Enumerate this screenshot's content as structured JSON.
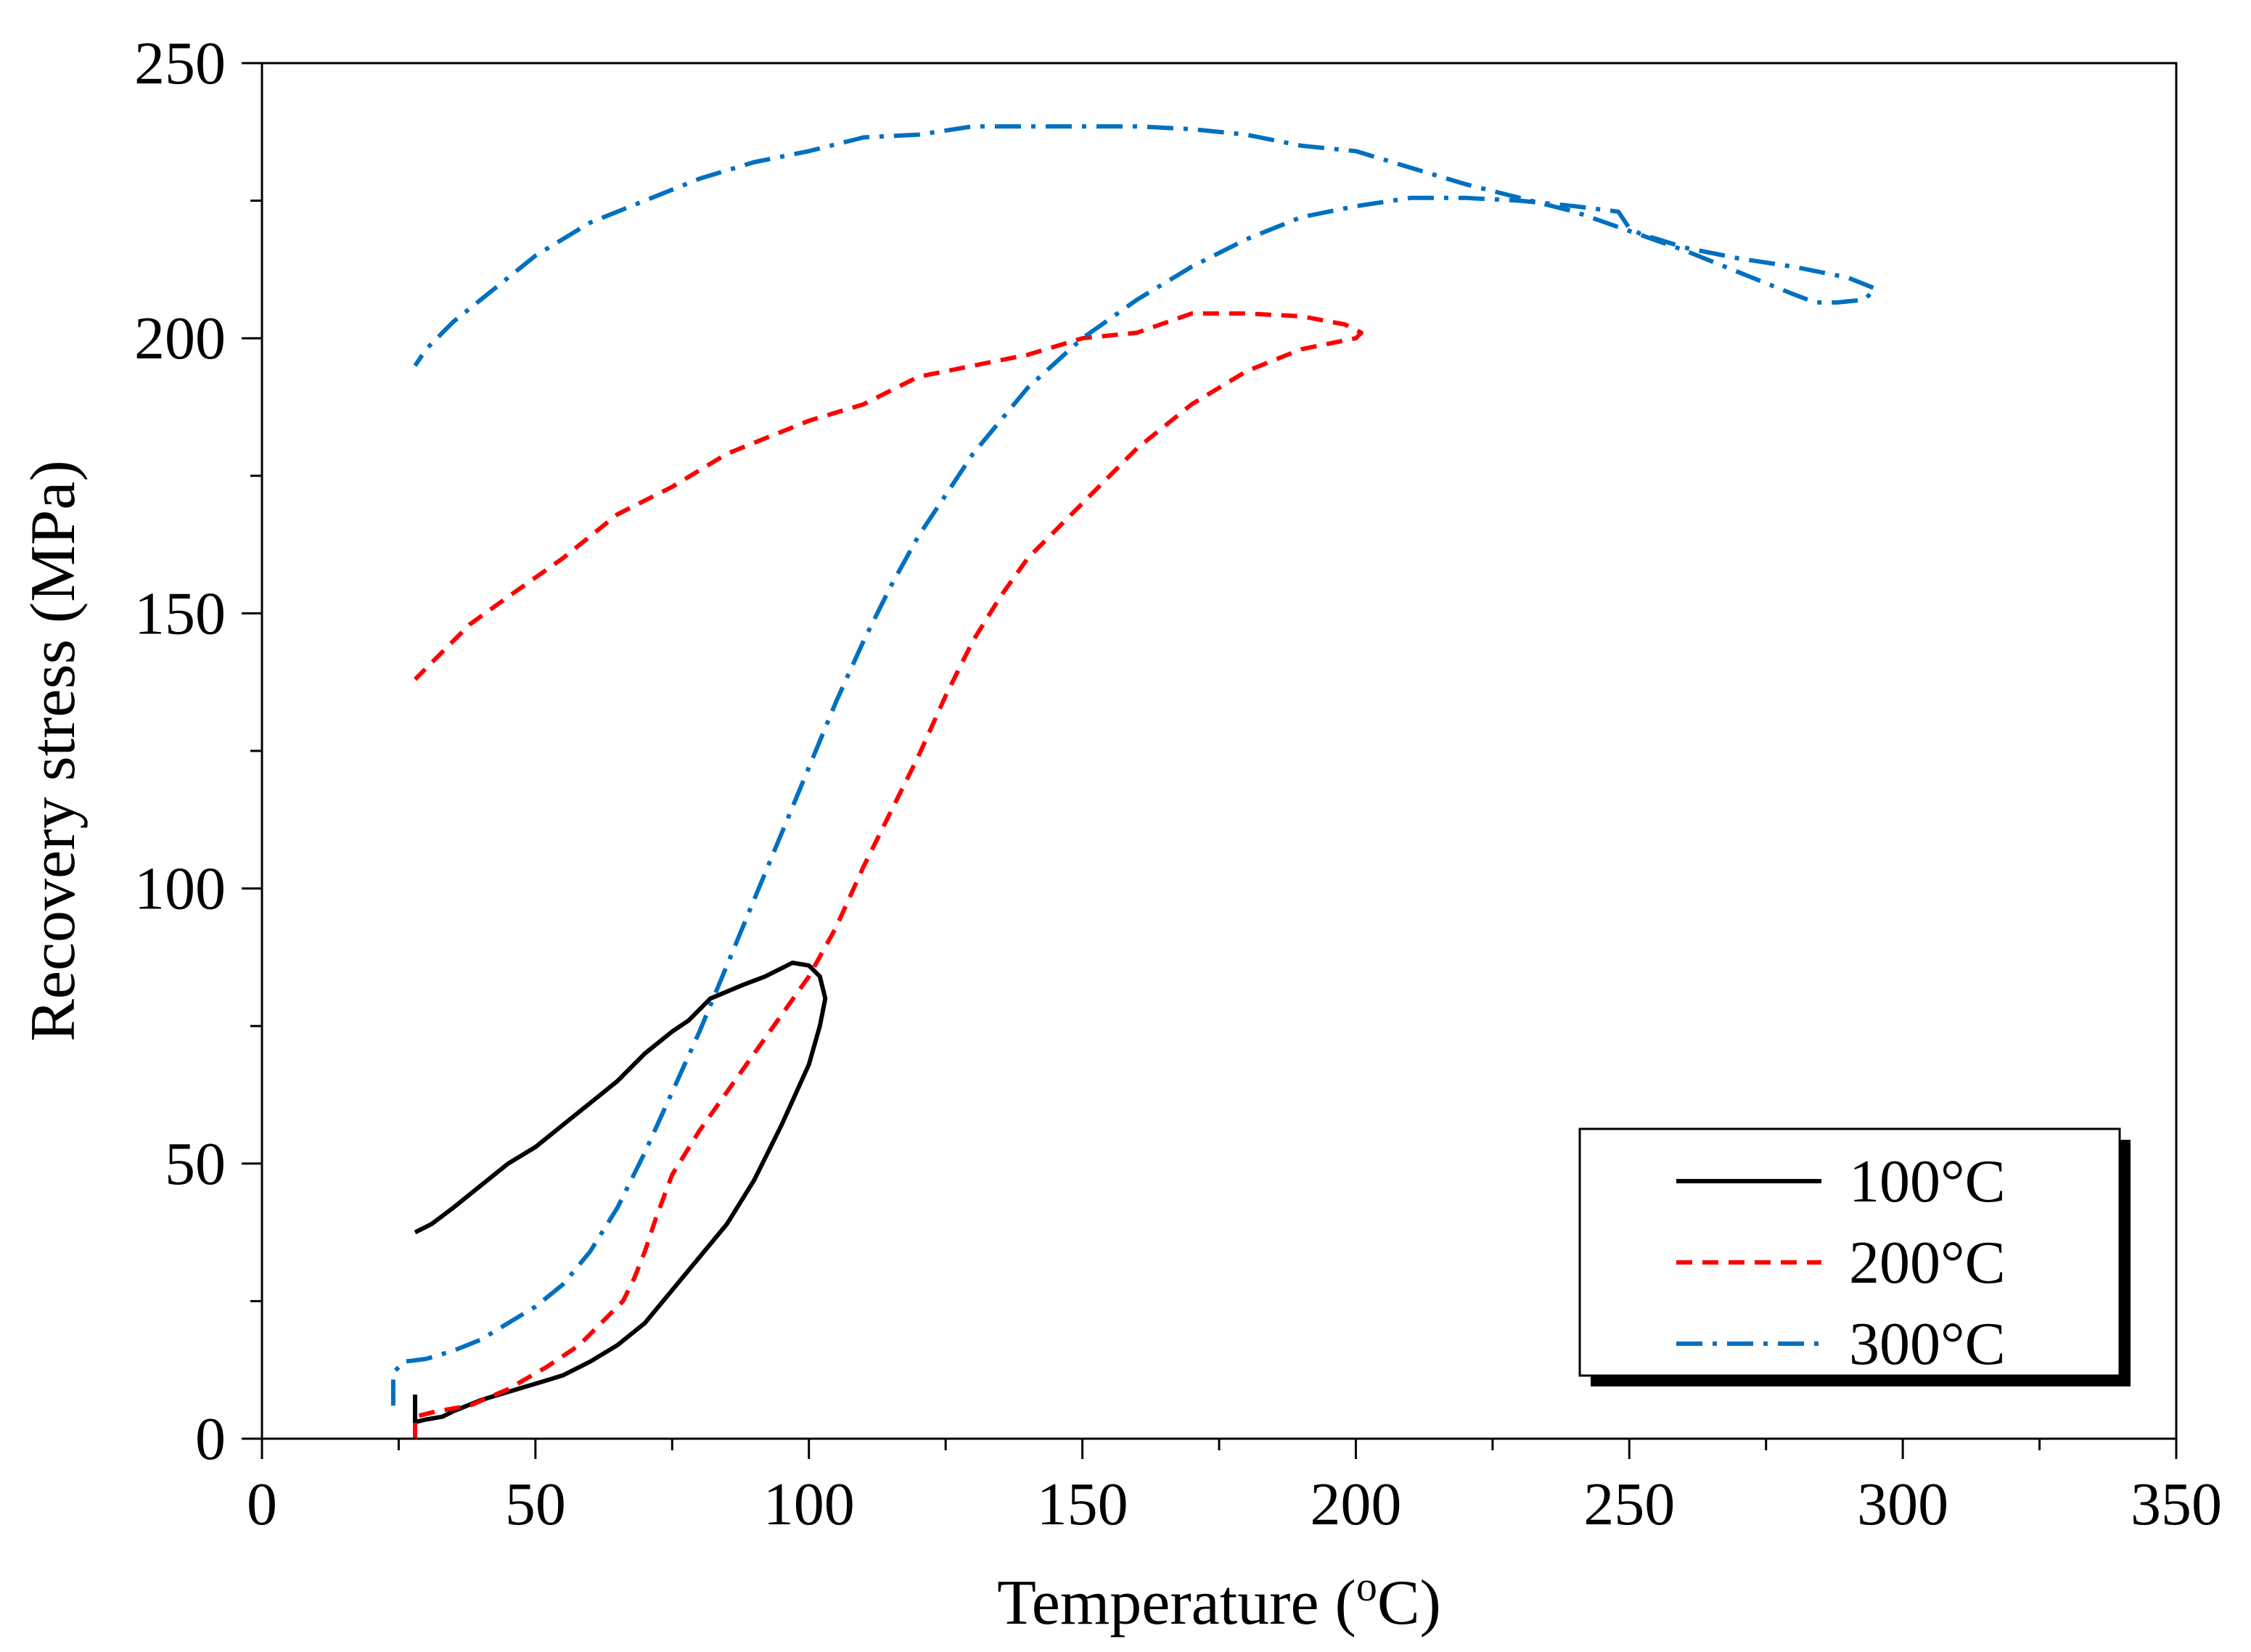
{
  "chart_data": {
    "type": "line",
    "title": "",
    "xlabel": "Temperature (oC)",
    "xlabel_parts": {
      "prefix": "Temperature (",
      "superscript": "o",
      "suffix": "C)"
    },
    "ylabel": "Recovery stress (MPa)",
    "xlim": [
      0,
      350
    ],
    "ylim": [
      0,
      250
    ],
    "x_ticks": [
      0,
      50,
      100,
      150,
      200,
      250,
      300,
      350
    ],
    "y_ticks": [
      0,
      50,
      100,
      150,
      200,
      250
    ],
    "x_tick_labels": [
      "0",
      "50",
      "100",
      "150",
      "200",
      "250",
      "300",
      "350"
    ],
    "y_tick_labels": [
      "0",
      "50",
      "100",
      "150",
      "200",
      "250"
    ],
    "grid": false,
    "legend_position": "bottom-right",
    "series": [
      {
        "name": "100°C",
        "color": "#000000",
        "dash": "solid",
        "points": [
          [
            28,
            8
          ],
          [
            28,
            3
          ],
          [
            30,
            3.5
          ],
          [
            33,
            4
          ],
          [
            35,
            5
          ],
          [
            40,
            7
          ],
          [
            45,
            8.5
          ],
          [
            50,
            10
          ],
          [
            55,
            11.5
          ],
          [
            60,
            14
          ],
          [
            65,
            17
          ],
          [
            70,
            21
          ],
          [
            75,
            27
          ],
          [
            80,
            33
          ],
          [
            85,
            39
          ],
          [
            90,
            47
          ],
          [
            95,
            57
          ],
          [
            100,
            68
          ],
          [
            102,
            75
          ],
          [
            103,
            80
          ],
          [
            102,
            84
          ],
          [
            100,
            86
          ],
          [
            97,
            86.5
          ],
          [
            92,
            84
          ],
          [
            88,
            82.5
          ],
          [
            82,
            80
          ],
          [
            78,
            76
          ],
          [
            75,
            74
          ],
          [
            70,
            70
          ],
          [
            65,
            65
          ],
          [
            60,
            61
          ],
          [
            55,
            57
          ],
          [
            50,
            53
          ],
          [
            45,
            50
          ],
          [
            40,
            46
          ],
          [
            35,
            42
          ],
          [
            31,
            39
          ],
          [
            28,
            37.5
          ]
        ]
      },
      {
        "name": "200°C",
        "color": "#ff0000",
        "dash": "dashed",
        "points": [
          [
            28,
            0
          ],
          [
            28,
            4
          ],
          [
            32,
            5
          ],
          [
            38,
            6
          ],
          [
            45,
            9
          ],
          [
            52,
            13
          ],
          [
            58,
            17
          ],
          [
            62,
            21
          ],
          [
            66,
            25
          ],
          [
            68,
            29
          ],
          [
            70,
            34
          ],
          [
            72,
            40
          ],
          [
            75,
            48
          ],
          [
            80,
            56
          ],
          [
            85,
            63
          ],
          [
            90,
            70
          ],
          [
            95,
            77
          ],
          [
            100,
            84
          ],
          [
            105,
            93
          ],
          [
            110,
            104
          ],
          [
            115,
            114
          ],
          [
            120,
            124
          ],
          [
            125,
            135
          ],
          [
            130,
            145
          ],
          [
            135,
            153
          ],
          [
            140,
            160
          ],
          [
            150,
            170
          ],
          [
            160,
            180
          ],
          [
            170,
            188
          ],
          [
            180,
            194
          ],
          [
            190,
            198
          ],
          [
            200,
            200
          ],
          [
            201,
            201
          ],
          [
            198,
            202.5
          ],
          [
            190,
            204
          ],
          [
            180,
            204.5
          ],
          [
            170,
            204.5
          ],
          [
            160,
            201
          ],
          [
            150,
            200
          ],
          [
            140,
            197
          ],
          [
            130,
            195
          ],
          [
            120,
            193
          ],
          [
            110,
            188
          ],
          [
            100,
            185
          ],
          [
            90,
            181
          ],
          [
            85,
            179
          ],
          [
            75,
            173
          ],
          [
            65,
            168
          ],
          [
            55,
            160
          ],
          [
            45,
            153
          ],
          [
            38,
            148
          ],
          [
            33,
            143
          ],
          [
            30,
            140
          ],
          [
            28,
            138
          ]
        ]
      },
      {
        "name": "300°C",
        "color": "#0070c0",
        "dash": "dashdot",
        "points": [
          [
            24,
            6
          ],
          [
            24,
            12
          ],
          [
            26,
            14
          ],
          [
            30,
            14.5
          ],
          [
            35,
            16
          ],
          [
            40,
            18
          ],
          [
            45,
            21
          ],
          [
            50,
            24
          ],
          [
            55,
            28
          ],
          [
            60,
            34
          ],
          [
            65,
            42
          ],
          [
            70,
            52
          ],
          [
            75,
            63
          ],
          [
            80,
            74
          ],
          [
            85,
            86
          ],
          [
            90,
            98
          ],
          [
            95,
            110
          ],
          [
            100,
            122
          ],
          [
            105,
            134
          ],
          [
            110,
            145
          ],
          [
            115,
            155
          ],
          [
            120,
            164
          ],
          [
            130,
            179
          ],
          [
            140,
            191
          ],
          [
            150,
            200
          ],
          [
            160,
            207
          ],
          [
            170,
            213
          ],
          [
            180,
            218
          ],
          [
            190,
            222
          ],
          [
            200,
            224
          ],
          [
            210,
            225.5
          ],
          [
            220,
            225.5
          ],
          [
            230,
            225
          ],
          [
            240,
            224
          ],
          [
            248,
            223
          ],
          [
            250,
            220
          ],
          [
            252,
            219
          ],
          [
            260,
            216.5
          ],
          [
            270,
            214.5
          ],
          [
            280,
            213
          ],
          [
            290,
            211
          ],
          [
            295,
            209
          ],
          [
            293,
            207
          ],
          [
            288,
            206.5
          ],
          [
            284,
            206.5
          ],
          [
            280,
            208
          ],
          [
            270,
            212
          ],
          [
            260,
            216
          ],
          [
            250,
            219.5
          ],
          [
            240,
            223
          ],
          [
            230,
            225.5
          ],
          [
            220,
            228
          ],
          [
            210,
            231
          ],
          [
            200,
            234
          ],
          [
            190,
            235
          ],
          [
            180,
            237
          ],
          [
            170,
            238
          ],
          [
            160,
            238.5
          ],
          [
            150,
            238.5
          ],
          [
            140,
            238.5
          ],
          [
            130,
            238.5
          ],
          [
            120,
            237
          ],
          [
            110,
            236.5
          ],
          [
            100,
            234
          ],
          [
            90,
            232
          ],
          [
            80,
            229
          ],
          [
            70,
            225
          ],
          [
            60,
            221
          ],
          [
            50,
            215
          ],
          [
            45,
            211
          ],
          [
            40,
            207
          ],
          [
            35,
            203
          ],
          [
            30,
            198
          ],
          [
            28,
            195
          ]
        ]
      }
    ]
  }
}
